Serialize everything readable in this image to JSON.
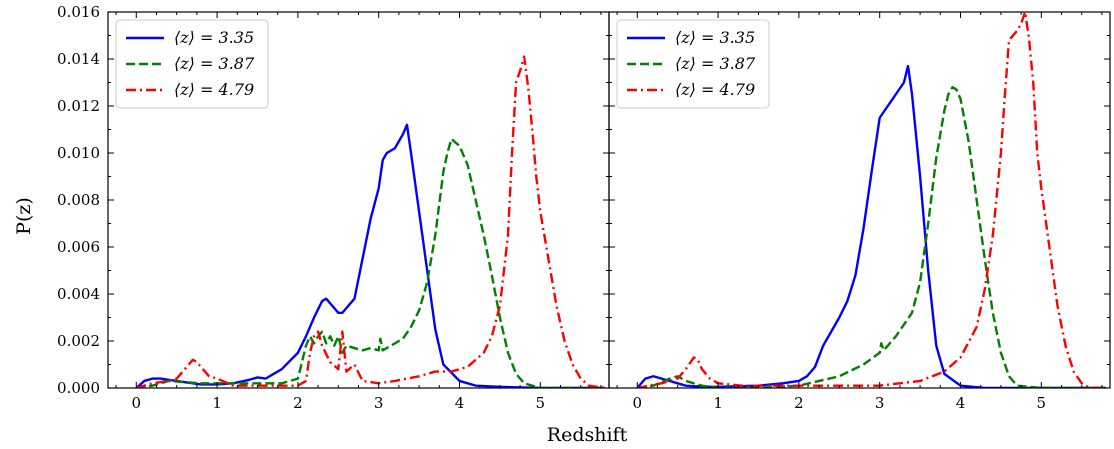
{
  "chart_data": {
    "type": "line",
    "xlabel": "Redshift",
    "ylabel": "P(z)",
    "xlim": [
      -0.35,
      5.85
    ],
    "ylim": [
      0,
      0.016
    ],
    "yticks": [
      "0.000",
      "0.002",
      "0.004",
      "0.006",
      "0.008",
      "0.010",
      "0.012",
      "0.014",
      "0.016"
    ],
    "xticks": [
      "0",
      "1",
      "2",
      "3",
      "4",
      "5"
    ],
    "legend_position": "top-left",
    "colors": {
      "blue": "#0000ff",
      "green": "#008000",
      "red": "#ff0000"
    },
    "panels": [
      {
        "name": "left",
        "series": [
          {
            "name": "⟨z⟩ = 3.35",
            "color": "#0000ff",
            "style": "solid",
            "x": [
              0.0,
              0.1,
              0.2,
              0.3,
              0.4,
              0.5,
              0.6,
              0.8,
              1.0,
              1.2,
              1.4,
              1.5,
              1.6,
              1.8,
              2.0,
              2.1,
              2.2,
              2.3,
              2.35,
              2.4,
              2.5,
              2.55,
              2.6,
              2.7,
              2.8,
              2.9,
              3.0,
              3.05,
              3.1,
              3.2,
              3.25,
              3.3,
              3.35,
              3.4,
              3.5,
              3.6,
              3.7,
              3.8,
              4.0,
              4.2,
              4.5,
              5.0,
              5.8
            ],
            "y": [
              0.0,
              0.0003,
              0.0004,
              0.0004,
              0.00035,
              0.0003,
              0.00025,
              0.00015,
              0.00015,
              0.0002,
              0.00035,
              0.00045,
              0.0004,
              0.0008,
              0.0015,
              0.0022,
              0.003,
              0.0037,
              0.0038,
              0.0036,
              0.0032,
              0.0032,
              0.0034,
              0.0038,
              0.0055,
              0.0072,
              0.0085,
              0.0097,
              0.01,
              0.0102,
              0.0105,
              0.0108,
              0.0112,
              0.01,
              0.0075,
              0.005,
              0.0025,
              0.001,
              0.0003,
              0.0001,
              5e-05,
              0.0,
              0.0
            ]
          },
          {
            "name": "⟨z⟩ = 3.87",
            "color": "#008000",
            "style": "dashed",
            "x": [
              0.0,
              0.2,
              0.4,
              0.6,
              0.8,
              1.0,
              1.2,
              1.5,
              1.8,
              2.0,
              2.1,
              2.15,
              2.2,
              2.25,
              2.3,
              2.35,
              2.4,
              2.45,
              2.5,
              2.55,
              2.6,
              2.7,
              2.8,
              2.9,
              3.0,
              3.02,
              3.05,
              3.1,
              3.2,
              3.3,
              3.4,
              3.5,
              3.6,
              3.7,
              3.8,
              3.85,
              3.9,
              4.0,
              4.1,
              4.2,
              4.3,
              4.4,
              4.5,
              4.6,
              4.7,
              4.8,
              5.0,
              5.3,
              5.8
            ],
            "y": [
              0.0,
              0.0001,
              0.0003,
              0.00025,
              0.0002,
              0.0002,
              0.0002,
              0.0002,
              0.0002,
              0.0004,
              0.0018,
              0.0022,
              0.0019,
              0.0022,
              0.0024,
              0.0019,
              0.0022,
              0.0018,
              0.0022,
              0.0015,
              0.0018,
              0.0017,
              0.0016,
              0.0017,
              0.0016,
              0.0021,
              0.0016,
              0.0017,
              0.0019,
              0.0021,
              0.0026,
              0.0033,
              0.0045,
              0.0065,
              0.0092,
              0.01,
              0.0106,
              0.0103,
              0.0095,
              0.008,
              0.0065,
              0.0048,
              0.003,
              0.0015,
              0.0006,
              0.0002,
              0.0,
              0.0,
              0.0
            ]
          },
          {
            "name": "⟨z⟩ = 4.79",
            "color": "#ff0000",
            "style": "dashdot",
            "x": [
              0.0,
              0.2,
              0.4,
              0.5,
              0.6,
              0.7,
              0.75,
              0.8,
              0.85,
              0.9,
              1.0,
              1.2,
              1.5,
              2.0,
              2.1,
              2.15,
              2.2,
              2.25,
              2.3,
              2.4,
              2.5,
              2.55,
              2.6,
              2.7,
              2.8,
              3.0,
              3.2,
              3.5,
              3.7,
              3.9,
              4.1,
              4.3,
              4.4,
              4.5,
              4.6,
              4.65,
              4.7,
              4.75,
              4.8,
              4.85,
              4.9,
              4.95,
              5.0,
              5.1,
              5.2,
              5.3,
              5.4,
              5.5,
              5.6,
              5.8
            ],
            "y": [
              0.0,
              0.0002,
              0.0003,
              0.0004,
              0.0008,
              0.0012,
              0.0011,
              0.0009,
              0.0007,
              0.0005,
              0.0004,
              0.0001,
              0.0001,
              0.0001,
              0.0003,
              0.0015,
              0.0022,
              0.0024,
              0.0018,
              0.0011,
              0.0008,
              0.0024,
              0.0007,
              0.001,
              0.0003,
              0.0002,
              0.0003,
              0.0005,
              0.0007,
              0.0007,
              0.0009,
              0.0015,
              0.0022,
              0.0035,
              0.0065,
              0.01,
              0.013,
              0.0135,
              0.0141,
              0.0128,
              0.011,
              0.009,
              0.0075,
              0.0055,
              0.0035,
              0.002,
              0.001,
              0.0004,
              0.0001,
              0.0
            ]
          }
        ]
      },
      {
        "name": "right",
        "series": [
          {
            "name": "⟨z⟩ = 3.35",
            "color": "#0000ff",
            "style": "solid",
            "x": [
              0.0,
              0.1,
              0.2,
              0.3,
              0.4,
              0.5,
              0.6,
              0.8,
              1.0,
              1.5,
              1.8,
              2.0,
              2.1,
              2.2,
              2.3,
              2.4,
              2.5,
              2.6,
              2.7,
              2.8,
              2.9,
              3.0,
              3.1,
              3.2,
              3.3,
              3.35,
              3.4,
              3.5,
              3.6,
              3.7,
              3.8,
              4.0,
              4.3,
              5.0,
              5.8
            ],
            "y": [
              0.0,
              0.0004,
              0.0005,
              0.0004,
              0.0003,
              0.0002,
              0.0001,
              5e-05,
              5e-05,
              0.0001,
              0.0002,
              0.0003,
              0.0005,
              0.0009,
              0.0018,
              0.0024,
              0.003,
              0.0037,
              0.0048,
              0.0068,
              0.0092,
              0.0115,
              0.012,
              0.0125,
              0.013,
              0.0137,
              0.0125,
              0.009,
              0.005,
              0.0018,
              0.0006,
              0.0001,
              0.0,
              0.0,
              0.0
            ]
          },
          {
            "name": "⟨z⟩ = 3.87",
            "color": "#008000",
            "style": "dashed",
            "x": [
              0.0,
              0.2,
              0.4,
              0.5,
              0.6,
              0.8,
              1.0,
              1.5,
              2.0,
              2.5,
              2.8,
              3.0,
              3.02,
              3.05,
              3.2,
              3.4,
              3.5,
              3.6,
              3.7,
              3.8,
              3.85,
              3.9,
              3.95,
              4.0,
              4.1,
              4.2,
              4.3,
              4.4,
              4.5,
              4.6,
              4.7,
              5.0,
              5.8
            ],
            "y": [
              0.0,
              0.0001,
              0.0004,
              0.0005,
              0.0003,
              0.0001,
              0.0,
              0.0,
              0.0001,
              0.0005,
              0.001,
              0.0015,
              0.0019,
              0.0016,
              0.0022,
              0.0032,
              0.0045,
              0.007,
              0.0098,
              0.0118,
              0.0125,
              0.0128,
              0.0127,
              0.0123,
              0.0105,
              0.008,
              0.0055,
              0.0032,
              0.0015,
              0.0005,
              0.0001,
              0.0,
              0.0
            ]
          },
          {
            "name": "⟨z⟩ = 4.79",
            "color": "#ff0000",
            "style": "dashdot",
            "x": [
              0.0,
              0.3,
              0.5,
              0.6,
              0.7,
              0.75,
              0.8,
              0.9,
              1.0,
              1.3,
              2.0,
              3.0,
              3.5,
              3.8,
              4.0,
              4.2,
              4.3,
              4.4,
              4.5,
              4.55,
              4.6,
              4.65,
              4.7,
              4.75,
              4.8,
              4.85,
              4.9,
              4.95,
              5.0,
              5.1,
              5.2,
              5.3,
              5.4,
              5.5,
              5.6,
              5.8
            ],
            "y": [
              0.0,
              0.0002,
              0.0004,
              0.0008,
              0.0013,
              0.0012,
              0.0008,
              0.0004,
              0.0002,
              0.0001,
              0.0001,
              0.0001,
              0.0003,
              0.0007,
              0.0013,
              0.0026,
              0.0042,
              0.0065,
              0.01,
              0.0125,
              0.0148,
              0.015,
              0.0152,
              0.0155,
              0.016,
              0.0148,
              0.013,
              0.01,
              0.0085,
              0.006,
              0.0035,
              0.0018,
              0.0007,
              0.0002,
              0.0,
              0.0
            ]
          }
        ]
      }
    ]
  }
}
